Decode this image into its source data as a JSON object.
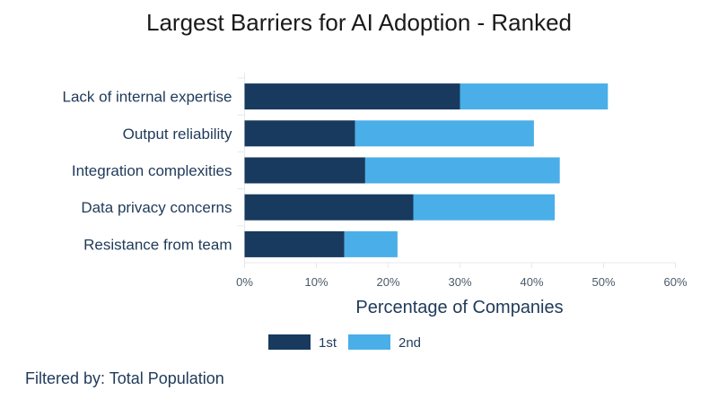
{
  "chart_data": {
    "type": "bar",
    "orientation": "horizontal",
    "stacked": true,
    "title": "Largest Barriers for AI Adoption - Ranked",
    "xlabel": "Percentage of Companies",
    "ylabel": "",
    "xlim": [
      0,
      60
    ],
    "x_ticks": [
      "0%",
      "10%",
      "20%",
      "30%",
      "40%",
      "50%",
      "60%"
    ],
    "x_tick_values": [
      0,
      10,
      20,
      30,
      40,
      50,
      60
    ],
    "categories": [
      "Lack of internal expertise",
      "Output reliability",
      "Integration complexities",
      "Data privacy concerns",
      "Resistance from team"
    ],
    "series": [
      {
        "name": "1st",
        "color": "#173a5e",
        "values": [
          30.0,
          15.4,
          16.8,
          23.5,
          13.9
        ]
      },
      {
        "name": "2nd",
        "color": "#4aaee8",
        "values": [
          20.6,
          24.9,
          27.1,
          19.7,
          7.4
        ]
      }
    ],
    "legend_position": "bottom",
    "grid": false
  },
  "footer": {
    "note": "Filtered by: Total Population"
  }
}
